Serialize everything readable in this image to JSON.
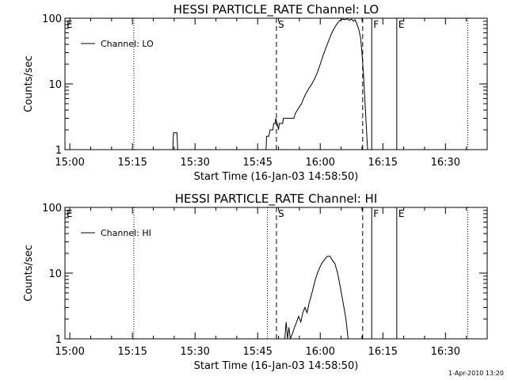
{
  "chart_data": [
    {
      "type": "line",
      "title": "HESSI PARTICLE_RATE Channel: LO",
      "xlabel": "Start Time (16-Jan-03 14:58:50)",
      "ylabel": "Counts/sec",
      "yscale": "log",
      "ylim": [
        1,
        100
      ],
      "xlim": [
        "14:58:50",
        "16:40:00"
      ],
      "xticks": [
        "15:00",
        "15:15",
        "15:30",
        "15:45",
        "16:00",
        "16:15",
        "16:30"
      ],
      "yticks": [
        "1",
        "10",
        "100"
      ],
      "legend": {
        "placement": "top-left",
        "entries": [
          "Channel: LO"
        ]
      },
      "markers": [
        {
          "label": "E",
          "time": "14:58:50",
          "style": "none"
        },
        {
          "label": "",
          "time": "15:15:20",
          "style": "dotted"
        },
        {
          "label": "S",
          "time": "15:49:30",
          "style": "dashed"
        },
        {
          "label": "",
          "time": "16:10:10",
          "style": "dashed"
        },
        {
          "label": "F",
          "time": "16:12:20",
          "style": "solid"
        },
        {
          "label": "E",
          "time": "16:18:20",
          "style": "solid"
        },
        {
          "label": "",
          "time": "16:35:20",
          "style": "dotted"
        }
      ],
      "series": [
        {
          "name": "Channel: LO",
          "segments": [
            [
              [
                "15:24:40",
                1
              ],
              [
                "15:24:50",
                1.8
              ],
              [
                "15:25:40",
                1.8
              ],
              [
                "15:25:50",
                1
              ]
            ],
            [
              [
                "15:47:00",
                1
              ],
              [
                "15:47:10",
                1.6
              ],
              [
                "15:47:40",
                1.6
              ],
              [
                "15:48:00",
                2
              ],
              [
                "15:48:40",
                2
              ],
              [
                "15:48:50",
                2.5
              ],
              [
                "15:49:10",
                2.5
              ],
              [
                "15:49:20",
                3
              ],
              [
                "15:49:40",
                2.5
              ],
              [
                "15:50:00",
                2
              ],
              [
                "15:50:10",
                2.5
              ],
              [
                "15:51:00",
                2.5
              ],
              [
                "15:51:10",
                3
              ],
              [
                "15:53:40",
                3
              ],
              [
                "15:54:00",
                3.5
              ],
              [
                "15:54:30",
                4
              ],
              [
                "15:55:00",
                4.5
              ],
              [
                "15:55:30",
                5
              ],
              [
                "15:56:00",
                6
              ],
              [
                "15:56:30",
                7
              ],
              [
                "15:57:00",
                8
              ],
              [
                "15:57:30",
                9
              ],
              [
                "15:58:00",
                10
              ],
              [
                "15:58:40",
                12
              ],
              [
                "15:59:20",
                15
              ],
              [
                "16:00:00",
                20
              ],
              [
                "16:00:40",
                27
              ],
              [
                "16:01:20",
                35
              ],
              [
                "16:02:00",
                45
              ],
              [
                "16:02:40",
                58
              ],
              [
                "16:03:20",
                70
              ],
              [
                "16:04:00",
                82
              ],
              [
                "16:04:40",
                92
              ],
              [
                "16:05:20",
                97
              ],
              [
                "16:06:00",
                95
              ],
              [
                "16:06:30",
                98
              ],
              [
                "16:07:00",
                93
              ],
              [
                "16:07:30",
                97
              ],
              [
                "16:08:00",
                90
              ],
              [
                "16:08:20",
                95
              ],
              [
                "16:08:40",
                85
              ],
              [
                "16:09:10",
                70
              ],
              [
                "16:09:40",
                50
              ],
              [
                "16:10:00",
                30
              ],
              [
                "16:10:20",
                15
              ],
              [
                "16:10:40",
                6
              ],
              [
                "16:11:00",
                2.5
              ],
              [
                "16:11:20",
                1
              ]
            ]
          ]
        }
      ]
    },
    {
      "type": "line",
      "title": "HESSI PARTICLE_RATE Channel: HI",
      "xlabel": "Start Time (16-Jan-03 14:58:50)",
      "ylabel": "Counts/sec",
      "yscale": "log",
      "ylim": [
        1,
        100
      ],
      "xlim": [
        "14:58:50",
        "16:40:00"
      ],
      "xticks": [
        "15:00",
        "15:15",
        "15:30",
        "15:45",
        "16:00",
        "16:15",
        "16:30"
      ],
      "yticks": [
        "1",
        "10",
        "100"
      ],
      "legend": {
        "placement": "top-left",
        "entries": [
          "Channel: HI"
        ]
      },
      "markers": [
        {
          "label": "E",
          "time": "14:58:50",
          "style": "none"
        },
        {
          "label": "",
          "time": "15:15:20",
          "style": "dotted"
        },
        {
          "label": "",
          "time": "15:47:20",
          "style": "dotted"
        },
        {
          "label": "S",
          "time": "15:49:30",
          "style": "dashed"
        },
        {
          "label": "",
          "time": "16:10:10",
          "style": "dashed"
        },
        {
          "label": "F",
          "time": "16:12:20",
          "style": "solid"
        },
        {
          "label": "E",
          "time": "16:18:20",
          "style": "solid"
        },
        {
          "label": "",
          "time": "16:35:20",
          "style": "dotted"
        }
      ],
      "series": [
        {
          "name": "Channel: HI",
          "segments": [
            [
              [
                "15:51:30",
                1
              ],
              [
                "15:51:50",
                1.8
              ],
              [
                "15:52:10",
                1
              ],
              [
                "15:52:30",
                1.5
              ],
              [
                "15:52:50",
                1
              ],
              [
                "15:53:20",
                1.2
              ],
              [
                "15:53:50",
                1.5
              ],
              [
                "15:54:20",
                1.8
              ],
              [
                "15:54:50",
                2.2
              ],
              [
                "15:55:20",
                1.8
              ],
              [
                "15:55:50",
                2.5
              ],
              [
                "15:56:20",
                3
              ],
              [
                "15:56:50",
                2.5
              ],
              [
                "15:57:20",
                3.5
              ],
              [
                "15:57:50",
                4.5
              ],
              [
                "15:58:20",
                6
              ],
              [
                "15:58:50",
                8
              ],
              [
                "15:59:20",
                10
              ],
              [
                "15:59:50",
                12
              ],
              [
                "16:00:20",
                14
              ],
              [
                "16:01:00",
                16
              ],
              [
                "16:01:40",
                18
              ],
              [
                "16:02:20",
                18
              ],
              [
                "16:02:50",
                16
              ],
              [
                "16:03:30",
                14
              ],
              [
                "16:04:10",
                10
              ],
              [
                "16:04:50",
                6
              ],
              [
                "16:05:30",
                3.5
              ],
              [
                "16:06:10",
                2
              ],
              [
                "16:06:40",
                1
              ]
            ]
          ]
        }
      ]
    }
  ],
  "footer": {
    "stamp": "1-Apr-2010 13:20"
  }
}
